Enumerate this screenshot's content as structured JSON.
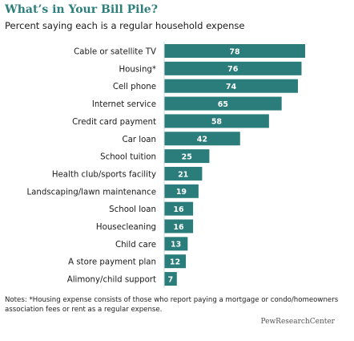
{
  "header": {
    "title": "What’s in Your Bill Pile?",
    "subtitle": "Percent saying each is a regular household expense"
  },
  "chart_data": {
    "type": "bar",
    "orientation": "horizontal",
    "categories": [
      "Cable or satellite TV",
      "Housing*",
      "Cell phone",
      "Internet service",
      "Credit card payment",
      "Car loan",
      "School tuition",
      "Health club/sports facility",
      "Landscaping/lawn maintenance",
      "School loan",
      "Housecleaning",
      "Child care",
      "A store payment plan",
      "Alimony/child support"
    ],
    "values": [
      78,
      76,
      74,
      65,
      58,
      42,
      25,
      21,
      19,
      16,
      16,
      13,
      12,
      7
    ],
    "xlim": [
      0,
      80
    ],
    "grid": false,
    "bar_color": "#2a7d7a",
    "label_color": "#ffffff"
  },
  "footer": {
    "notes": "Notes: *Housing expense consists of those who report paying a mortgage or condo/homeowners association fees or rent as a regular expense.",
    "brand": "PewResearchCenter"
  }
}
